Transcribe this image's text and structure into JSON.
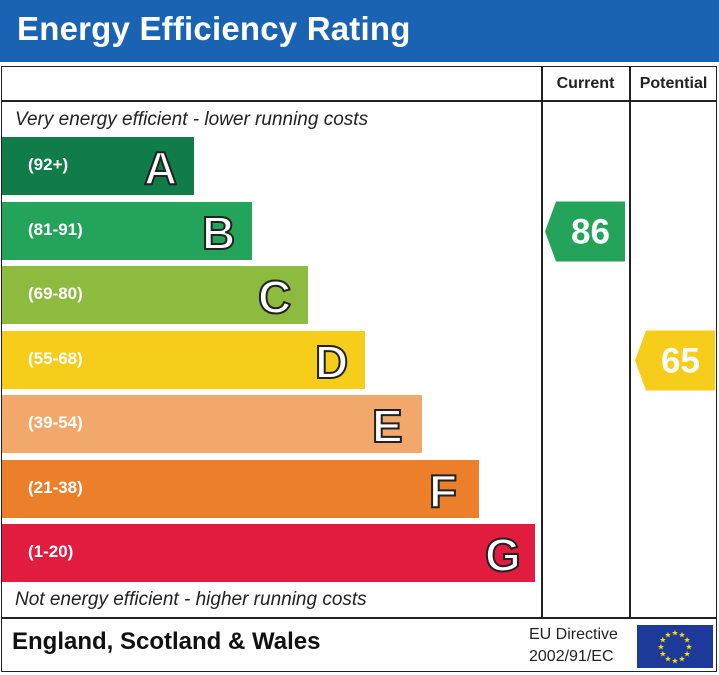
{
  "title": "Energy Efficiency Rating",
  "columns": {
    "current": "Current",
    "potential": "Potential"
  },
  "top_note": "Very energy efficient - lower running costs",
  "bottom_note": "Not energy efficient - higher running costs",
  "footer": {
    "region": "England, Scotland & Wales",
    "directive_line1": "EU Directive",
    "directive_line2": "2002/91/EC"
  },
  "colors": {
    "header": "#1a63b2",
    "A": "#0f7c49",
    "B": "#23a45a",
    "C": "#8dbb40",
    "D": "#f7cd1b",
    "E": "#f2a86b",
    "F": "#ec7f2a",
    "G": "#e21c3e"
  },
  "chart_data": {
    "type": "bar",
    "categories": [
      "A",
      "B",
      "C",
      "D",
      "E",
      "F",
      "G"
    ],
    "ranges": [
      "(92+)",
      "(81-91)",
      "(69-80)",
      "(55-68)",
      "(39-54)",
      "(21-38)",
      "(1-20)"
    ],
    "current": {
      "value": 86,
      "band": "B",
      "color": "#23a45a"
    },
    "potential": {
      "value": 65,
      "band": "D",
      "color": "#f7cd1b"
    }
  }
}
